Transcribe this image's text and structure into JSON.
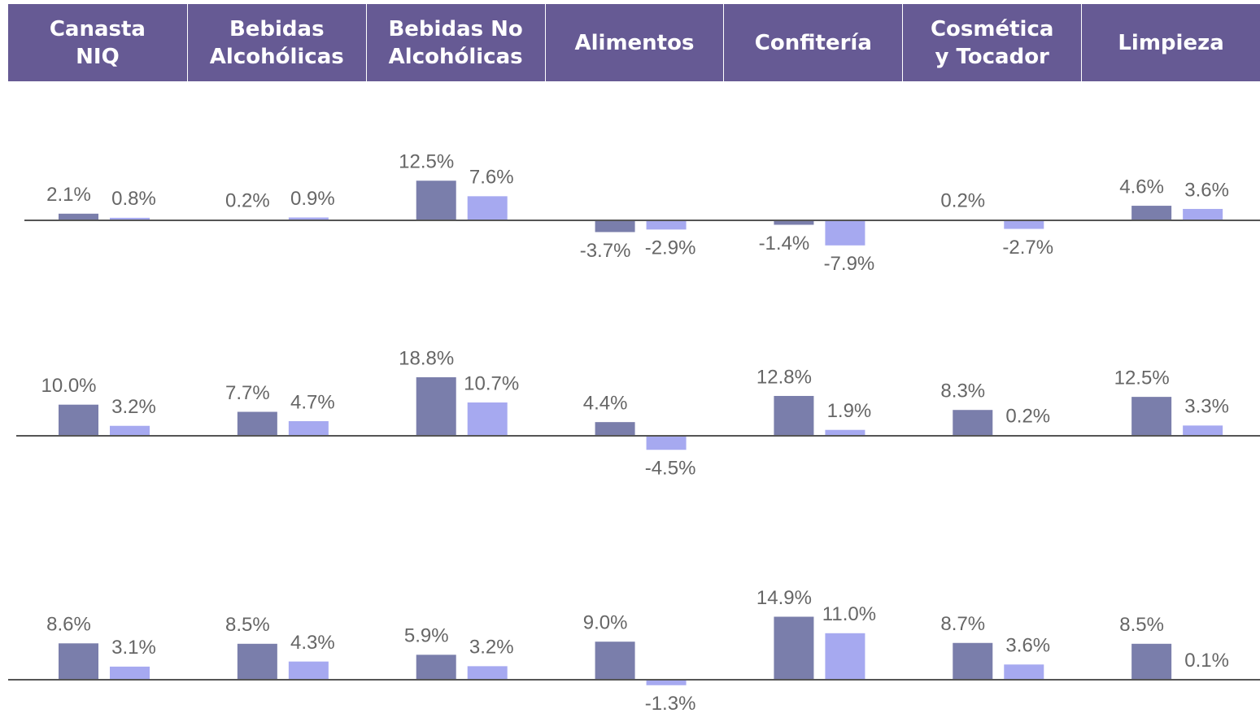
{
  "header": [
    "Canasta\nNIQ",
    "Bebidas\nAlcohólicas",
    "Bebidas No\nAlcohólicas",
    "Alimentos",
    "Confitería",
    "Cosmética\ny Tocador",
    "Limpieza"
  ],
  "chart_data": [
    {
      "type": "bar",
      "series": [
        {
          "color": "#7a7eab",
          "values": [
            2.1,
            0.2,
            12.5,
            -3.7,
            -1.4,
            0.2,
            4.6
          ],
          "value_labels": [
            "2.1%",
            "0.2%",
            "12.5%",
            "-3.7%",
            "-1.4%",
            "0.2%",
            "4.6%"
          ]
        },
        {
          "color": "#a6a9f0",
          "values": [
            0.8,
            0.9,
            7.6,
            -2.9,
            -7.9,
            -2.7,
            3.6
          ],
          "value_labels": [
            "0.8%",
            "0.9%",
            "7.6%",
            "-2.9%",
            "-7.9%",
            "-2.7%",
            "3.6%"
          ]
        }
      ]
    },
    {
      "type": "bar",
      "series": [
        {
          "color": "#7a7eab",
          "values": [
            10.0,
            7.7,
            18.8,
            4.4,
            12.8,
            8.3,
            12.5
          ],
          "value_labels": [
            "10.0%",
            "7.7%",
            "18.8%",
            "4.4%",
            "12.8%",
            "8.3%",
            "12.5%"
          ]
        },
        {
          "color": "#a6a9f0",
          "values": [
            3.2,
            4.7,
            10.7,
            -4.5,
            1.9,
            0.2,
            3.3
          ],
          "value_labels": [
            "3.2%",
            "4.7%",
            "10.7%",
            "-4.5%",
            "1.9%",
            "0.2%",
            "3.3%"
          ]
        }
      ]
    },
    {
      "type": "bar",
      "series": [
        {
          "color": "#7a7eab",
          "values": [
            8.6,
            8.5,
            5.9,
            9.0,
            14.9,
            8.7,
            8.5
          ],
          "value_labels": [
            "8.6%",
            "8.5%",
            "5.9%",
            "9.0%",
            "14.9%",
            "8.7%",
            "8.5%"
          ]
        },
        {
          "color": "#a6a9f0",
          "values": [
            3.1,
            4.3,
            3.2,
            -1.3,
            11.0,
            3.6,
            0.1
          ],
          "value_labels": [
            "3.1%",
            "4.3%",
            "3.2%",
            "-1.3%",
            "11.0%",
            "3.6%",
            "0.1%"
          ]
        }
      ]
    }
  ]
}
